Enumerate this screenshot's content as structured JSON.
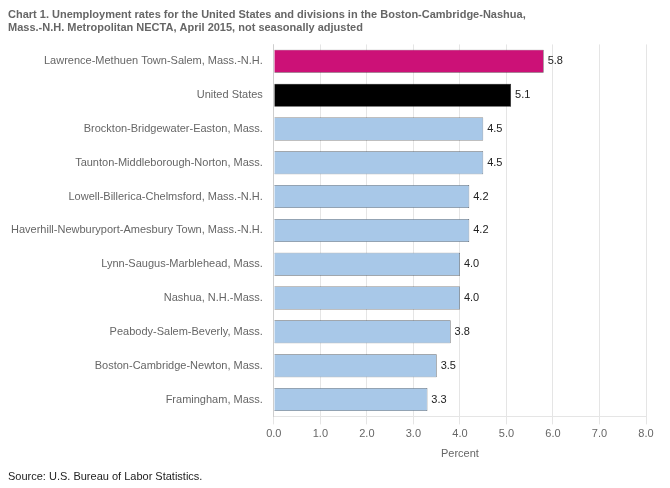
{
  "chart_data": {
    "type": "bar",
    "orientation": "horizontal",
    "title": [
      "Chart 1. Unemployment rates for the United States and divisions in the Boston-Cambridge-Nashua,",
      "Mass.-N.H. Metropolitan NECTA, April 2015, not seasonally adjusted"
    ],
    "source": "Source: U.S. Bureau of Labor Statistics.",
    "categories": [
      "Framingham, Mass.",
      "Boston-Cambridge-Newton, Mass.",
      "Peabody-Salem-Beverly, Mass.",
      "Nashua, N.H.-Mass.",
      "Lynn-Saugus-Marblehead, Mass.",
      "Haverhill-Newburyport-Amesbury Town, Mass.-N.H.",
      "Lowell-Billerica-Chelmsford, Mass.-N.H.",
      "Taunton-Middleborough-Norton, Mass.",
      "Brockton-Bridgewater-Easton, Mass.",
      "United States",
      "Lawrence-Methuen Town-Salem, Mass.-N.H."
    ],
    "values": [
      3.3,
      3.5,
      3.8,
      4.0,
      4.0,
      4.2,
      4.2,
      4.5,
      4.5,
      5.1,
      5.8
    ],
    "value_labels": [
      "3.3",
      "3.5",
      "3.8",
      "4.0",
      "4.0",
      "4.2",
      "4.2",
      "4.5",
      "4.5",
      "5.1",
      "5.8"
    ],
    "data_labels": true,
    "colors": [
      "#a8c8e8",
      "#a8c8e8",
      "#a8c8e8",
      "#a8c8e8",
      "#a8c8e8",
      "#a8c8e8",
      "#a8c8e8",
      "#a8c8e8",
      "#a8c8e8",
      "#000000",
      "#cc1177"
    ],
    "xlabel": "Percent",
    "xlim": [
      0,
      8.0
    ],
    "xticks": [
      {
        "value": 0,
        "label": "0.0"
      },
      {
        "value": 1,
        "label": "1.0"
      },
      {
        "value": 2,
        "label": "2.0"
      },
      {
        "value": 3,
        "label": "3.0"
      },
      {
        "value": 4,
        "label": "4.0"
      },
      {
        "value": 5,
        "label": "5.0"
      },
      {
        "value": 6,
        "label": "6.0"
      },
      {
        "value": 7,
        "label": "7.0"
      },
      {
        "value": 8,
        "label": "8.0"
      }
    ],
    "grid": true
  }
}
